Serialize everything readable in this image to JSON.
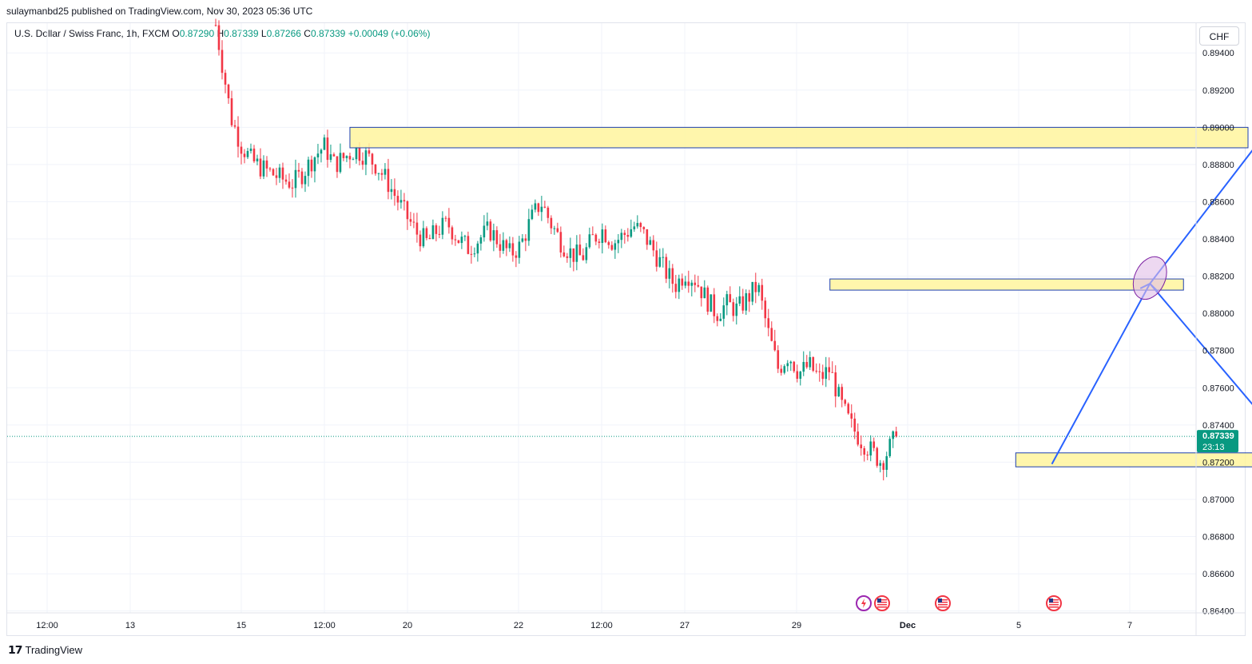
{
  "header": {
    "publisher": "sulaymanbd25 published on TradingView.com, Nov 30, 2023 05:36 UTC"
  },
  "symbol": {
    "name": "U.S. Dollar / Swiss Franc, 1h, FXCM",
    "open_label": "O",
    "open": "0.87290",
    "high_label": "H",
    "high": "0.87339",
    "low_label": "L",
    "low": "0.87266",
    "close_label": "C",
    "close": "0.87339",
    "change": "+0.00049 (+0.06%)"
  },
  "currency_button": "CHF",
  "footer": {
    "brand": "TradingView"
  },
  "price_tag": {
    "price": "0.87339",
    "countdown": "23:13"
  },
  "colors": {
    "up": "#089981",
    "down": "#f23645",
    "zone_fill": "#fff59d",
    "zone_border": "#1e40af",
    "arrow": "#2962ff",
    "ellipse": "#e1bee7"
  },
  "icons": [
    "lightning-event-icon",
    "us-flag-event-icon",
    "us-flag-event-icon",
    "us-flag-event-icon"
  ],
  "chart_data": {
    "type": "candlestick",
    "timeframe": "1h",
    "x_tick_labels": [
      "12:00",
      "13",
      "15",
      "12:00",
      "20",
      "22",
      "12:00",
      "27",
      "29",
      "Dec",
      "5",
      "7"
    ],
    "y_tick_labels": [
      "0.89400",
      "0.89200",
      "0.89000",
      "0.88800",
      "0.88600",
      "0.88400",
      "0.88200",
      "0.88000",
      "0.87800",
      "0.87600",
      "0.87400",
      "0.87200",
      "0.87000",
      "0.86800",
      "0.86600",
      "0.86400"
    ],
    "y_ticks": [
      0.894,
      0.892,
      0.89,
      0.888,
      0.886,
      0.884,
      0.882,
      0.88,
      0.878,
      0.876,
      0.874,
      0.872,
      0.87,
      0.868,
      0.866,
      0.864
    ],
    "ylim": [
      0.8639,
      0.8956
    ],
    "last_price": 0.87339,
    "price_path": [
      [
        0.0,
        0.8955
      ],
      [
        0.3,
        0.893
      ],
      [
        0.6,
        0.8905
      ],
      [
        1.0,
        0.889
      ],
      [
        1.4,
        0.8882
      ],
      [
        1.8,
        0.8878
      ],
      [
        2.2,
        0.8875
      ],
      [
        2.6,
        0.8872
      ],
      [
        3.0,
        0.887
      ],
      [
        3.4,
        0.8876
      ],
      [
        3.8,
        0.8884
      ],
      [
        4.2,
        0.889
      ],
      [
        4.6,
        0.888
      ],
      [
        5.0,
        0.8884
      ],
      [
        5.4,
        0.8888
      ],
      [
        5.8,
        0.8885
      ],
      [
        6.2,
        0.888
      ],
      [
        6.6,
        0.8872
      ],
      [
        7.0,
        0.8862
      ],
      [
        7.4,
        0.8852
      ],
      [
        7.8,
        0.8843
      ],
      [
        8.2,
        0.8838
      ],
      [
        8.6,
        0.8845
      ],
      [
        9.0,
        0.8848
      ],
      [
        9.4,
        0.884
      ],
      [
        9.8,
        0.8835
      ],
      [
        10.2,
        0.884
      ],
      [
        10.6,
        0.8845
      ],
      [
        11.0,
        0.8838
      ],
      [
        11.4,
        0.8832
      ],
      [
        11.8,
        0.8836
      ],
      [
        12.2,
        0.885
      ],
      [
        12.6,
        0.886
      ],
      [
        13.0,
        0.8848
      ],
      [
        13.4,
        0.8838
      ],
      [
        13.8,
        0.8832
      ],
      [
        14.2,
        0.883
      ],
      [
        14.6,
        0.884
      ],
      [
        15.0,
        0.8845
      ],
      [
        15.4,
        0.8838
      ],
      [
        15.8,
        0.8842
      ],
      [
        16.2,
        0.8847
      ],
      [
        16.6,
        0.8842
      ],
      [
        17.0,
        0.8833
      ],
      [
        17.4,
        0.8823
      ],
      [
        17.8,
        0.8815
      ],
      [
        18.2,
        0.8822
      ],
      [
        18.6,
        0.8818
      ],
      [
        19.0,
        0.8808
      ],
      [
        19.4,
        0.88
      ],
      [
        19.8,
        0.8805
      ],
      [
        20.2,
        0.8802
      ],
      [
        20.6,
        0.8808
      ],
      [
        21.0,
        0.8815
      ],
      [
        21.4,
        0.879
      ],
      [
        21.8,
        0.877
      ],
      [
        22.2,
        0.8778
      ],
      [
        22.6,
        0.8768
      ],
      [
        23.0,
        0.8772
      ],
      [
        23.4,
        0.8765
      ],
      [
        23.8,
        0.877
      ],
      [
        24.2,
        0.8752
      ],
      [
        24.6,
        0.874
      ],
      [
        25.0,
        0.8732
      ],
      [
        25.4,
        0.8726
      ],
      [
        25.8,
        0.872
      ],
      [
        26.2,
        0.873
      ],
      [
        26.4,
        0.87339
      ]
    ],
    "zones": [
      {
        "x": [
          5.2,
          40.0
        ],
        "y": [
          0.8889,
          0.89
        ]
      },
      {
        "x": [
          23.8,
          37.5
        ],
        "y": [
          0.88125,
          0.88185
        ]
      },
      {
        "x": [
          31.0,
          42.6
        ],
        "y": [
          0.87175,
          0.8725
        ]
      }
    ],
    "projection_path": [
      [
        32.4,
        0.8719
      ],
      [
        36.2,
        0.8816
      ],
      [
        40.8,
        0.8899
      ]
    ],
    "projection_branch": [
      [
        36.2,
        0.8816
      ],
      [
        42.2,
        0.8718
      ]
    ],
    "ellipse": {
      "x": 36.2,
      "y": 0.8819
    }
  }
}
